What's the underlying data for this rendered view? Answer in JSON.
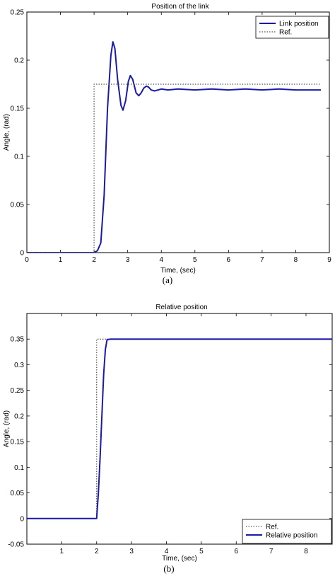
{
  "chart_data": [
    {
      "type": "line",
      "title": "Position of the link",
      "xlabel": "Time, (sec)",
      "ylabel": "Angle, (rad)",
      "caption": "(a)",
      "xlim": [
        0,
        9
      ],
      "ylim": [
        0,
        0.25
      ],
      "xticks": [
        0,
        1,
        2,
        3,
        4,
        5,
        6,
        7,
        8,
        9
      ],
      "yticks": [
        0,
        0.05,
        0.1,
        0.15,
        0.2,
        0.25
      ],
      "grid": false,
      "legend_position": "top-right",
      "series": [
        {
          "name": "Link position",
          "style": "solid",
          "color": "#1a1aa6",
          "x": [
            0,
            2.0,
            2.1,
            2.2,
            2.3,
            2.4,
            2.5,
            2.56,
            2.62,
            2.7,
            2.8,
            2.86,
            2.94,
            3.02,
            3.08,
            3.15,
            3.25,
            3.33,
            3.4,
            3.48,
            3.56,
            3.62,
            3.7,
            3.8,
            3.9,
            4.0,
            4.2,
            4.5,
            5.0,
            5.5,
            6.0,
            6.5,
            7.0,
            7.5,
            8.0,
            8.5,
            8.75
          ],
          "y": [
            0,
            0,
            0.002,
            0.01,
            0.06,
            0.15,
            0.205,
            0.219,
            0.212,
            0.18,
            0.153,
            0.148,
            0.158,
            0.178,
            0.184,
            0.18,
            0.166,
            0.163,
            0.166,
            0.171,
            0.173,
            0.172,
            0.169,
            0.168,
            0.169,
            0.17,
            0.169,
            0.17,
            0.169,
            0.17,
            0.169,
            0.17,
            0.169,
            0.17,
            0.169,
            0.169,
            0.169
          ]
        },
        {
          "name": "Ref.",
          "style": "dotted",
          "color": "#555555",
          "x": [
            0,
            2.0,
            2.0,
            8.75
          ],
          "y": [
            0,
            0,
            0.175,
            0.175
          ]
        }
      ]
    },
    {
      "type": "line",
      "title": "Relative position",
      "xlabel": "Time, (sec)",
      "ylabel": "Angle, (rad)",
      "caption": "(b)",
      "xlim": [
        0,
        8.75
      ],
      "ylim": [
        -0.05,
        0.4
      ],
      "xticks": [
        1,
        2,
        3,
        4,
        5,
        6,
        7,
        8
      ],
      "yticks": [
        -0.05,
        0,
        0.05,
        0.1,
        0.15,
        0.2,
        0.25,
        0.3,
        0.35
      ],
      "grid": false,
      "legend_position": "bottom-right",
      "series": [
        {
          "name": "Ref.",
          "style": "dotted",
          "color": "#555555",
          "x": [
            0,
            2.0,
            2.0,
            8.75
          ],
          "y": [
            0,
            0,
            0.35,
            0.35
          ]
        },
        {
          "name": "Relative position",
          "style": "solid",
          "color": "#1a1aa6",
          "x": [
            0,
            2.0,
            2.05,
            2.1,
            2.15,
            2.2,
            2.25,
            2.3,
            2.4,
            3.0,
            8.75
          ],
          "y": [
            0,
            0,
            0.05,
            0.12,
            0.2,
            0.28,
            0.33,
            0.349,
            0.35,
            0.35,
            0.35
          ]
        }
      ]
    }
  ]
}
